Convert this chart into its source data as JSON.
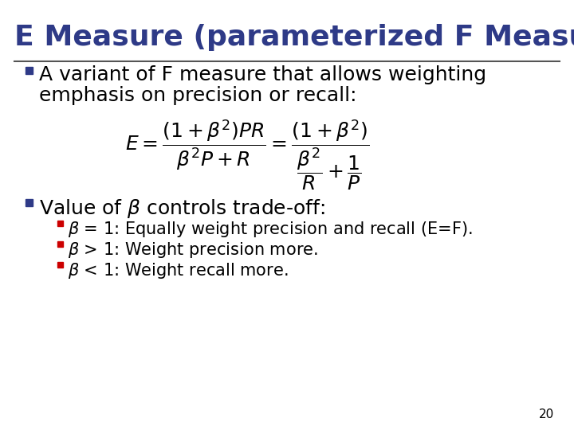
{
  "title": "E Measure (parameterized F Measure)",
  "title_color": "#2E3A87",
  "title_fontsize": 26,
  "bg_color": "#FFFFFF",
  "line_color": "#888888",
  "bullet_color": "#2E3A87",
  "sub_bullet_color": "#CC0000",
  "text_color": "#000000",
  "bullet1_line1": "A variant of F measure that allows weighting",
  "bullet1_line2": "emphasis on precision or recall:",
  "formula": "$E = \\dfrac{(1+\\beta^2)PR}{\\beta^2 P + R} = \\dfrac{(1+\\beta^2)}{\\dfrac{\\beta^2}{R}+\\dfrac{1}{P}}$",
  "bullet2": "Value of $\\beta$ controls trade-off:",
  "sub_items": [
    "$\\beta$ = 1: Equally weight precision and recall (E=F).",
    "$\\beta$ > 1: Weight precision more.",
    "$\\beta$ < 1: Weight recall more."
  ],
  "page_number": "20",
  "bullet_fontsize": 18,
  "sub_fontsize": 15,
  "formula_fontsize": 18
}
